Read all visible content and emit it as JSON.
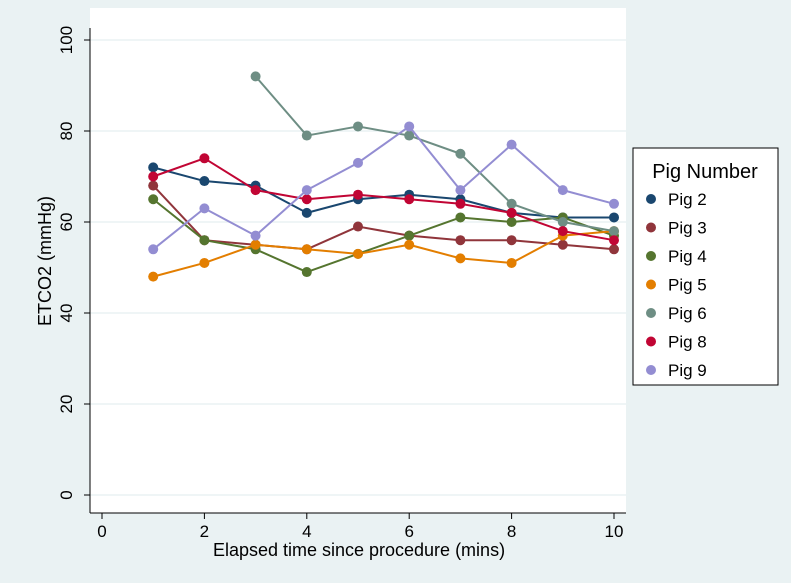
{
  "chart_data": {
    "type": "line",
    "title": "",
    "xlabel": "Elapsed time since procedure (mins)",
    "ylabel": "ETCO2 (mmHg)",
    "xlim": [
      0,
      10
    ],
    "ylim": [
      0,
      100
    ],
    "xticks": [
      0,
      2,
      4,
      6,
      8,
      10
    ],
    "yticks": [
      0,
      20,
      40,
      60,
      80,
      100
    ],
    "grid": true,
    "legend": {
      "title": "Pig Number",
      "placement": "right"
    },
    "series": [
      {
        "name": "Pig 2",
        "color": "#1a476f",
        "points": [
          [
            1,
            72
          ],
          [
            2,
            69
          ],
          [
            3,
            68
          ],
          [
            4,
            62
          ],
          [
            5,
            65
          ],
          [
            6,
            66
          ],
          [
            7,
            65
          ],
          [
            8,
            62
          ],
          [
            9,
            61
          ],
          [
            10,
            61
          ]
        ]
      },
      {
        "name": "Pig 3",
        "color": "#90353b",
        "points": [
          [
            1,
            68
          ],
          [
            2,
            56
          ],
          [
            3,
            55
          ],
          [
            4,
            54
          ],
          [
            5,
            59
          ],
          [
            6,
            57
          ],
          [
            7,
            56
          ],
          [
            8,
            56
          ],
          [
            9,
            55
          ],
          [
            10,
            54
          ]
        ]
      },
      {
        "name": "Pig 4",
        "color": "#55752f",
        "points": [
          [
            1,
            65
          ],
          [
            2,
            56
          ],
          [
            3,
            54
          ],
          [
            4,
            49
          ],
          [
            5,
            53
          ],
          [
            6,
            57
          ],
          [
            7,
            61
          ],
          [
            8,
            60
          ],
          [
            9,
            61
          ],
          [
            10,
            57
          ]
        ]
      },
      {
        "name": "Pig 5",
        "color": "#e37e00",
        "points": [
          [
            1,
            48
          ],
          [
            2,
            51
          ],
          [
            3,
            55
          ],
          [
            4,
            54
          ],
          [
            5,
            53
          ],
          [
            6,
            55
          ],
          [
            7,
            52
          ],
          [
            8,
            51
          ],
          [
            9,
            57
          ],
          [
            10,
            58
          ]
        ]
      },
      {
        "name": "Pig 6",
        "color": "#6e8e84",
        "points": [
          [
            3,
            92
          ],
          [
            4,
            79
          ],
          [
            5,
            81
          ],
          [
            6,
            79
          ],
          [
            7,
            75
          ],
          [
            8,
            64
          ],
          [
            9,
            60
          ],
          [
            10,
            58
          ]
        ]
      },
      {
        "name": "Pig 8",
        "color": "#c10534",
        "points": [
          [
            1,
            70
          ],
          [
            2,
            74
          ],
          [
            3,
            67
          ],
          [
            4,
            65
          ],
          [
            5,
            66
          ],
          [
            6,
            65
          ],
          [
            7,
            64
          ],
          [
            8,
            62
          ],
          [
            9,
            58
          ],
          [
            10,
            56
          ]
        ]
      },
      {
        "name": "Pig 9",
        "color": "#938dd2",
        "points": [
          [
            1,
            54
          ],
          [
            2,
            63
          ],
          [
            3,
            57
          ],
          [
            4,
            67
          ],
          [
            5,
            73
          ],
          [
            6,
            81
          ],
          [
            7,
            67
          ],
          [
            8,
            77
          ],
          [
            9,
            67
          ],
          [
            10,
            64
          ]
        ]
      }
    ]
  }
}
